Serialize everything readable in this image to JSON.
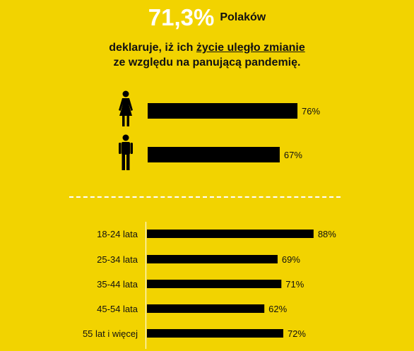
{
  "header": {
    "big_value": "71,3%",
    "big_sub": "Polaków",
    "line1_pre": "deklaruje, iż ich ",
    "line1_underlined": "życie uległo zmianie",
    "line2": "ze względu na panującą pandemię."
  },
  "colors": {
    "background": "#F2D300",
    "bar": "#000000",
    "text": "#111111",
    "accent": "#FFFFFF"
  },
  "chart_data": [
    {
      "type": "bar",
      "orientation": "horizontal",
      "categories": [
        "female-figure-icon",
        "male-figure-icon"
      ],
      "values": [
        76,
        67
      ],
      "value_labels": [
        "76%",
        "67%"
      ],
      "xlim": [
        0,
        100
      ]
    },
    {
      "type": "bar",
      "orientation": "horizontal",
      "categories": [
        "18-24 lata",
        "25-34 lata",
        "35-44 lata",
        "45-54 lata",
        "55 lat i więcej"
      ],
      "values": [
        88,
        69,
        71,
        62,
        72
      ],
      "value_labels": [
        "88%",
        "69%",
        "71%",
        "62%",
        "72%"
      ],
      "xlim": [
        0,
        100
      ]
    }
  ]
}
